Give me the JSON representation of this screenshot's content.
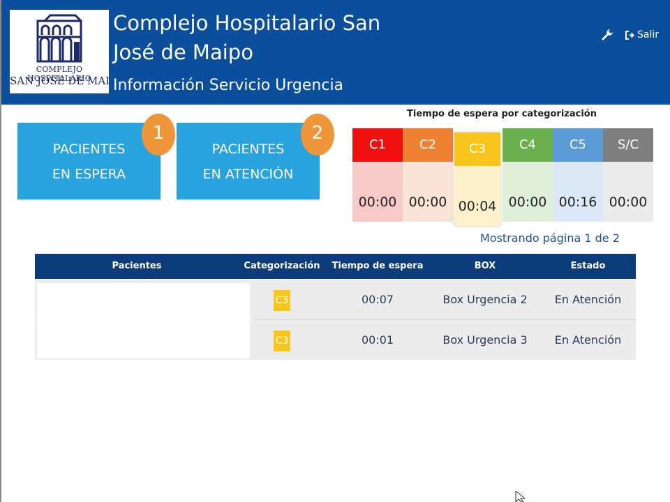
{
  "header": {
    "title": "Complejo Hospitalario San José de Maipo",
    "subtitle": "Información Servicio Urgencia",
    "logo_line1": "COMPLEJO HOSPITALARIO",
    "logo_line2": "SAN JOSE DE MAIPO",
    "logout_label": "Salir"
  },
  "cards": [
    {
      "line1": "PACIENTES",
      "line2": "EN ESPERA",
      "count": "1"
    },
    {
      "line1": "PACIENTES",
      "line2": "EN ATENCIÓN",
      "count": "2"
    }
  ],
  "wait_times": {
    "title": "Tiempo de espera por categorización",
    "categories": [
      {
        "label": "C1",
        "time": "00:00",
        "head_color": "#ef0f0f",
        "body_color": "#f8c9c9"
      },
      {
        "label": "C2",
        "time": "00:00",
        "head_color": "#ee8132",
        "body_color": "#f9e3d6"
      },
      {
        "label": "C3",
        "time": "00:04",
        "head_color": "#f7c51b",
        "body_color": "#fdf1cc"
      },
      {
        "label": "C4",
        "time": "00:00",
        "head_color": "#6ab04c",
        "body_color": "#e0efda"
      },
      {
        "label": "C5",
        "time": "00:16",
        "head_color": "#5b9bd8",
        "body_color": "#dde8f6"
      },
      {
        "label": "S/C",
        "time": "00:00",
        "head_color": "#7f7f7f",
        "body_color": "#ececec"
      }
    ]
  },
  "pagination": {
    "text": "Mostrando página 1 de 2"
  },
  "table": {
    "headers": [
      "Pacientes",
      "Categorización",
      "Tiempo de espera",
      "BOX",
      "Estado"
    ],
    "rows": [
      {
        "patient": "",
        "category": "C3",
        "wait": "00:07",
        "box": "Box Urgencia 2",
        "status": "En Atención"
      },
      {
        "patient": "",
        "category": "C3",
        "wait": "00:01",
        "box": "Box Urgencia 3",
        "status": "En Atención"
      }
    ]
  },
  "icons": {
    "wrench": "wrench-icon",
    "logout": "logout-icon",
    "cursor": "mouse-cursor-icon"
  }
}
